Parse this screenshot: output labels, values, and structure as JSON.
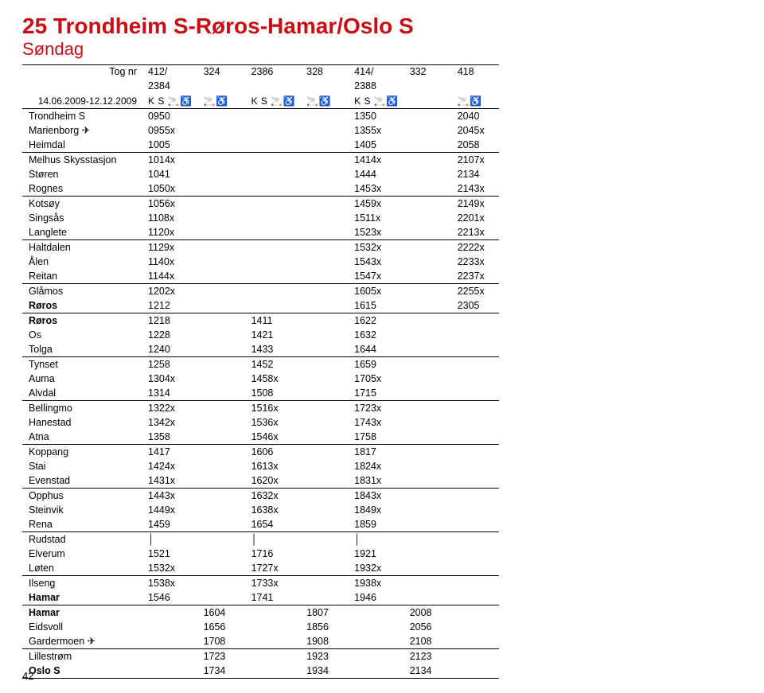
{
  "title": "25 Trondheim S-Røros-Hamar/Oslo S",
  "subtitle": "Søndag",
  "train_nr_label": "Tog nr",
  "date_range": "14.06.2009-12.12.2009",
  "page_number": "42",
  "columns": [
    "412/ 2384",
    "324",
    "2386",
    "328",
    "414/ 2388",
    "332",
    "418"
  ],
  "symbols_row": [
    "K S 🚬♿",
    "🚬♿",
    "K S 🚬♿",
    "🚬♿",
    "K S 🚬♿",
    "",
    "🚬♿"
  ],
  "groups": [
    {
      "rows": [
        {
          "s": "Trondheim S",
          "c": [
            "0950",
            "",
            "",
            "",
            "1350",
            "",
            "2040"
          ]
        },
        {
          "s": "Marienborg ✈",
          "c": [
            "0955x",
            "",
            "",
            "",
            "1355x",
            "",
            "2045x"
          ]
        },
        {
          "s": "Heimdal",
          "c": [
            "1005",
            "",
            "",
            "",
            "1405",
            "",
            "2058"
          ]
        }
      ]
    },
    {
      "rows": [
        {
          "s": "Melhus Skysstasjon",
          "c": [
            "1014x",
            "",
            "",
            "",
            "1414x",
            "",
            "2107x"
          ]
        },
        {
          "s": "Støren",
          "c": [
            "1041",
            "",
            "",
            "",
            "1444",
            "",
            "2134"
          ]
        },
        {
          "s": "Rognes",
          "c": [
            "1050x",
            "",
            "",
            "",
            "1453x",
            "",
            "2143x"
          ]
        }
      ]
    },
    {
      "rows": [
        {
          "s": "Kotsøy",
          "c": [
            "1056x",
            "",
            "",
            "",
            "1459x",
            "",
            "2149x"
          ]
        },
        {
          "s": "Singsås",
          "c": [
            "1108x",
            "",
            "",
            "",
            "1511x",
            "",
            "2201x"
          ]
        },
        {
          "s": "Langlete",
          "c": [
            "1120x",
            "",
            "",
            "",
            "1523x",
            "",
            "2213x"
          ]
        }
      ]
    },
    {
      "rows": [
        {
          "s": "Haltdalen",
          "c": [
            "1129x",
            "",
            "",
            "",
            "1532x",
            "",
            "2222x"
          ]
        },
        {
          "s": "Ålen",
          "c": [
            "1140x",
            "",
            "",
            "",
            "1543x",
            "",
            "2233x"
          ]
        },
        {
          "s": "Reitan",
          "c": [
            "1144x",
            "",
            "",
            "",
            "1547x",
            "",
            "2237x"
          ]
        }
      ]
    },
    {
      "rows": [
        {
          "s": "Glåmos",
          "c": [
            "1202x",
            "",
            "",
            "",
            "1605x",
            "",
            "2255x"
          ]
        },
        {
          "s": "Røros",
          "bold": true,
          "c": [
            "1212",
            "",
            "",
            "",
            "1615",
            "",
            "2305"
          ]
        }
      ]
    },
    {
      "rows": [
        {
          "s": "Røros",
          "bold": true,
          "c": [
            "1218",
            "",
            "1411",
            "",
            "1622",
            "",
            ""
          ]
        },
        {
          "s": "Os",
          "c": [
            "1228",
            "",
            "1421",
            "",
            "1632",
            "",
            ""
          ]
        },
        {
          "s": "Tolga",
          "c": [
            "1240",
            "",
            "1433",
            "",
            "1644",
            "",
            ""
          ]
        }
      ]
    },
    {
      "rows": [
        {
          "s": "Tynset",
          "c": [
            "1258",
            "",
            "1452",
            "",
            "1659",
            "",
            ""
          ]
        },
        {
          "s": "Auma",
          "c": [
            "1304x",
            "",
            "1458x",
            "",
            "1705x",
            "",
            ""
          ]
        },
        {
          "s": "Alvdal",
          "c": [
            "1314",
            "",
            "1508",
            "",
            "1715",
            "",
            ""
          ]
        }
      ]
    },
    {
      "rows": [
        {
          "s": "Bellingmo",
          "c": [
            "1322x",
            "",
            "1516x",
            "",
            "1723x",
            "",
            ""
          ]
        },
        {
          "s": "Hanestad",
          "c": [
            "1342x",
            "",
            "1536x",
            "",
            "1743x",
            "",
            ""
          ]
        },
        {
          "s": "Atna",
          "c": [
            "1358",
            "",
            "1546x",
            "",
            "1758",
            "",
            ""
          ]
        }
      ]
    },
    {
      "rows": [
        {
          "s": "Koppang",
          "c": [
            "1417",
            "",
            "1606",
            "",
            "1817",
            "",
            ""
          ]
        },
        {
          "s": "Stai",
          "c": [
            "1424x",
            "",
            "1613x",
            "",
            "1824x",
            "",
            ""
          ]
        },
        {
          "s": "Evenstad",
          "c": [
            "1431x",
            "",
            "1620x",
            "",
            "1831x",
            "",
            ""
          ]
        }
      ]
    },
    {
      "rows": [
        {
          "s": "Opphus",
          "c": [
            "1443x",
            "",
            "1632x",
            "",
            "1843x",
            "",
            ""
          ]
        },
        {
          "s": "Steinvik",
          "c": [
            "1449x",
            "",
            "1638x",
            "",
            "1849x",
            "",
            ""
          ]
        },
        {
          "s": "Rena",
          "c": [
            "1459",
            "",
            "1654",
            "",
            "1859",
            "",
            ""
          ]
        }
      ]
    },
    {
      "rows": [
        {
          "s": "Rudstad",
          "c": [
            "│",
            "",
            "│",
            "",
            "│",
            "",
            ""
          ]
        },
        {
          "s": "Elverum",
          "c": [
            "1521",
            "",
            "1716",
            "",
            "1921",
            "",
            ""
          ]
        },
        {
          "s": "Løten",
          "c": [
            "1532x",
            "",
            "1727x",
            "",
            "1932x",
            "",
            ""
          ]
        }
      ]
    },
    {
      "rows": [
        {
          "s": "Ilseng",
          "c": [
            "1538x",
            "",
            "1733x",
            "",
            "1938x",
            "",
            ""
          ]
        },
        {
          "s": "Hamar",
          "bold": true,
          "c": [
            "1546",
            "",
            "1741",
            "",
            "1946",
            "",
            ""
          ]
        }
      ]
    },
    {
      "rows": [
        {
          "s": "Hamar",
          "bold": true,
          "c": [
            "",
            "1604",
            "",
            "1807",
            "",
            "2008",
            ""
          ]
        },
        {
          "s": "Eidsvoll",
          "c": [
            "",
            "1656",
            "",
            "1856",
            "",
            "2056",
            ""
          ]
        },
        {
          "s": "Gardermoen ✈",
          "c": [
            "",
            "1708",
            "",
            "1908",
            "",
            "2108",
            ""
          ]
        }
      ]
    },
    {
      "rows": [
        {
          "s": "Lillestrøm",
          "c": [
            "",
            "1723",
            "",
            "1923",
            "",
            "2123",
            ""
          ]
        },
        {
          "s": "Oslo S",
          "bold": true,
          "c": [
            "",
            "1734",
            "",
            "1934",
            "",
            "2134",
            ""
          ]
        }
      ]
    }
  ]
}
